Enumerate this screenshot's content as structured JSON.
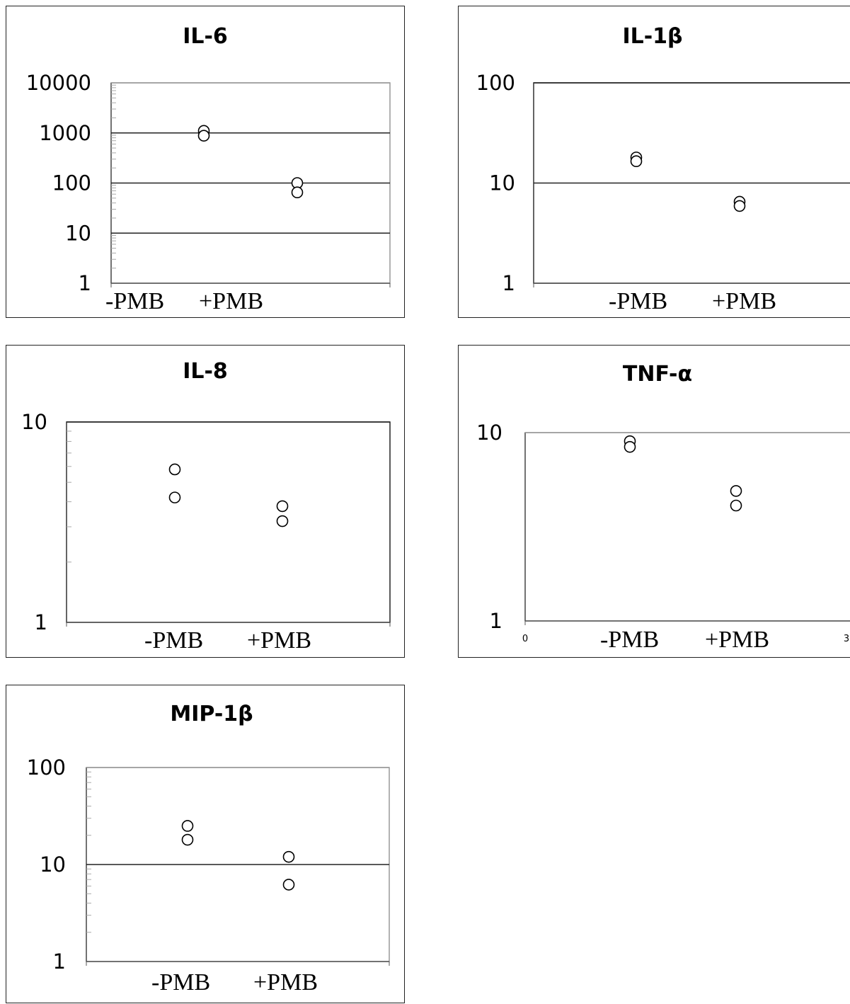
{
  "chart_data": [
    {
      "type": "scatter",
      "title": "IL-6",
      "categories": [
        "-PMB",
        "+PMB"
      ],
      "yscale": "log",
      "ylim": [
        1,
        10000
      ],
      "yticks": [
        "1",
        "10",
        "100",
        "1000",
        "10000"
      ],
      "grid": "major-horizontal",
      "points": [
        {
          "category": "-PMB",
          "y": 1100
        },
        {
          "category": "-PMB",
          "y": 880
        },
        {
          "category": "+PMB",
          "y": 100
        },
        {
          "category": "+PMB",
          "y": 65
        }
      ]
    },
    {
      "type": "scatter",
      "title": "IL-1β",
      "categories": [
        "-PMB",
        "+PMB"
      ],
      "yscale": "log",
      "ylim": [
        1,
        100
      ],
      "yticks": [
        "1",
        "10",
        "100"
      ],
      "grid": "major-horizontal",
      "points": [
        {
          "category": "-PMB",
          "y": 18
        },
        {
          "category": "-PMB",
          "y": 16.5
        },
        {
          "category": "+PMB",
          "y": 6.5
        },
        {
          "category": "+PMB",
          "y": 5.9
        }
      ]
    },
    {
      "type": "scatter",
      "title": "IL-8",
      "categories": [
        "-PMB",
        "+PMB"
      ],
      "yscale": "log",
      "ylim": [
        1,
        10
      ],
      "yticks": [
        "1",
        "10"
      ],
      "grid": "none",
      "points": [
        {
          "category": "-PMB",
          "y": 5.8
        },
        {
          "category": "-PMB",
          "y": 4.2
        },
        {
          "category": "+PMB",
          "y": 3.8
        },
        {
          "category": "+PMB",
          "y": 3.2
        }
      ]
    },
    {
      "type": "scatter",
      "title": "TNF-α",
      "categories": [
        "-PMB",
        "+PMB"
      ],
      "yscale": "log",
      "ylim": [
        1,
        10
      ],
      "yticks": [
        "1",
        "10"
      ],
      "xlim": [
        0,
        3
      ],
      "xticks": [
        "0",
        "3"
      ],
      "grid": "none",
      "points": [
        {
          "category": "-PMB",
          "y": 9.0
        },
        {
          "category": "-PMB",
          "y": 8.4
        },
        {
          "category": "+PMB",
          "y": 4.9
        },
        {
          "category": "+PMB",
          "y": 4.1
        }
      ]
    },
    {
      "type": "scatter",
      "title": "MIP-1β",
      "categories": [
        "-PMB",
        "+PMB"
      ],
      "yscale": "log",
      "ylim": [
        1,
        100
      ],
      "yticks": [
        "1",
        "10",
        "100"
      ],
      "grid": "major-horizontal",
      "points": [
        {
          "category": "-PMB",
          "y": 25
        },
        {
          "category": "-PMB",
          "y": 18
        },
        {
          "category": "+PMB",
          "y": 12
        },
        {
          "category": "+PMB",
          "y": 6.2
        }
      ]
    }
  ]
}
